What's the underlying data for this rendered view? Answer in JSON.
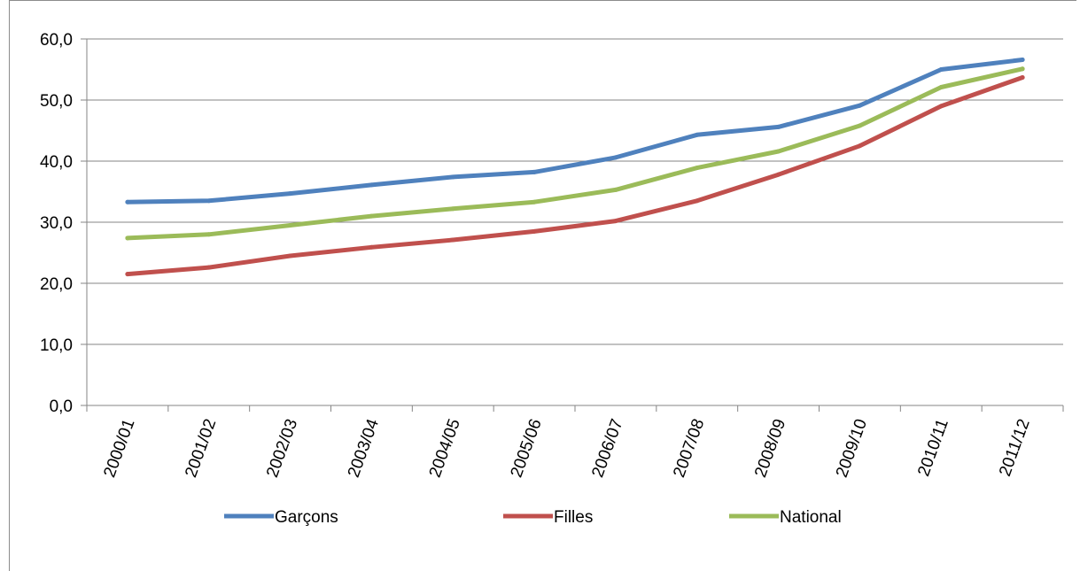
{
  "chart_data": {
    "type": "line",
    "categories": [
      "2000/01",
      "2001/02",
      "2002/03",
      "2003/04",
      "2004/05",
      "2005/06",
      "2006/07",
      "2007/08",
      "2008/09",
      "2009/10",
      "2010/11",
      "2011/12"
    ],
    "series": [
      {
        "name": "Garçons",
        "color": "#4F81BD",
        "values": [
          33.3,
          33.5,
          34.7,
          36.1,
          37.4,
          38.2,
          40.6,
          44.3,
          45.6,
          49.1,
          55.0,
          56.6
        ]
      },
      {
        "name": "Filles",
        "color": "#C0504D",
        "values": [
          21.5,
          22.6,
          24.5,
          25.9,
          27.1,
          28.5,
          30.2,
          33.5,
          37.8,
          42.5,
          49.0,
          53.7
        ]
      },
      {
        "name": "National",
        "color": "#9BBB59",
        "values": [
          27.4,
          28.0,
          29.5,
          31.0,
          32.2,
          33.3,
          35.3,
          38.9,
          41.6,
          45.8,
          52.1,
          55.1
        ]
      }
    ],
    "yticks": [
      "0,0",
      "10,0",
      "20,0",
      "30,0",
      "40,0",
      "50,0",
      "60,0"
    ],
    "ylim": [
      0,
      60
    ],
    "grid": true,
    "legend_position": "bottom",
    "title": "",
    "xlabel": "",
    "ylabel": ""
  }
}
